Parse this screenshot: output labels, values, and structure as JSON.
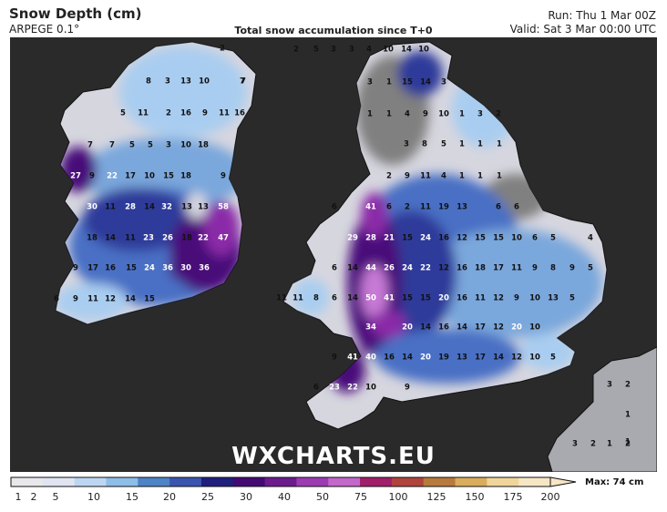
{
  "header": {
    "title": "Snow Depth (cm)",
    "model": "ARPEGE 0.1°",
    "subtitle": "Total snow accumulation since T+0",
    "run": "Run: Thu 1 Mar 00Z",
    "valid": "Valid: Sat 3 Mar 00:00 UTC"
  },
  "watermark": "WXCHARTS.EU",
  "legend": {
    "max_label": "Max: 74 cm",
    "levels": [
      "1",
      "2",
      "5",
      "10",
      "15",
      "20",
      "25",
      "30",
      "40",
      "50",
      "75",
      "100",
      "125",
      "150",
      "175",
      "200"
    ],
    "colors": [
      "#e8e8ec",
      "#e0e4f0",
      "#bcd6f2",
      "#8ebde8",
      "#4f83c7",
      "#3a55b0",
      "#1f1f7e",
      "#430a73",
      "#6b1c8e",
      "#9d3bb3",
      "#c467cb",
      "#a11e6a",
      "#b0443c",
      "#b87a3c",
      "#d9ad5c",
      "#f0d59a",
      "#f6e6c4"
    ]
  },
  "map": {
    "colors": {
      "sea": "#2a2a2a",
      "land_grey": "#808080",
      "land_light": "#d6d6df",
      "snow_1": "#e8e8f2",
      "snow_5": "#a9cdf0",
      "snow_10": "#7aa7dc",
      "snow_15": "#4a6fc4",
      "snow_20": "#2e3a9a",
      "snow_30": "#4a0f7a",
      "snow_40": "#8b2aa8",
      "snow_50": "#c77ad6"
    },
    "values": [
      {
        "v": "2"
      },
      {
        "v": "7"
      },
      {
        "v": "8"
      },
      {
        "v": "3"
      },
      {
        "v": "13"
      },
      {
        "v": "10"
      },
      {
        "v": "7"
      },
      {
        "v": "5"
      },
      {
        "v": "11"
      },
      {
        "v": "2"
      },
      {
        "v": "16"
      },
      {
        "v": "9"
      },
      {
        "v": "11"
      },
      {
        "v": "16"
      },
      {
        "v": "7"
      },
      {
        "v": "7"
      },
      {
        "v": "5"
      },
      {
        "v": "5"
      },
      {
        "v": "3"
      },
      {
        "v": "10"
      },
      {
        "v": "18"
      },
      {
        "v": "27"
      },
      {
        "v": "9"
      },
      {
        "v": "22"
      },
      {
        "v": "17"
      },
      {
        "v": "10"
      },
      {
        "v": "15"
      },
      {
        "v": "18"
      },
      {
        "v": "9"
      },
      {
        "v": "30"
      },
      {
        "v": "11"
      },
      {
        "v": "28"
      },
      {
        "v": "14"
      },
      {
        "v": "32"
      },
      {
        "v": "13"
      },
      {
        "v": "13"
      },
      {
        "v": "58"
      },
      {
        "v": "18"
      },
      {
        "v": "14"
      },
      {
        "v": "11"
      },
      {
        "v": "23"
      },
      {
        "v": "26"
      },
      {
        "v": "18"
      },
      {
        "v": "22"
      },
      {
        "v": "47"
      },
      {
        "v": "9"
      },
      {
        "v": "17"
      },
      {
        "v": "16"
      },
      {
        "v": "15"
      },
      {
        "v": "24"
      },
      {
        "v": "36"
      },
      {
        "v": "30"
      },
      {
        "v": "36"
      },
      {
        "v": "6"
      },
      {
        "v": "9"
      },
      {
        "v": "11"
      },
      {
        "v": "12"
      },
      {
        "v": "14"
      },
      {
        "v": "15"
      },
      {
        "v": "2"
      },
      {
        "v": "5"
      },
      {
        "v": "3"
      },
      {
        "v": "3"
      },
      {
        "v": "4"
      },
      {
        "v": "10"
      },
      {
        "v": "14"
      },
      {
        "v": "10"
      },
      {
        "v": "3"
      },
      {
        "v": "1"
      },
      {
        "v": "15"
      },
      {
        "v": "14"
      },
      {
        "v": "3"
      },
      {
        "v": "1"
      },
      {
        "v": "1"
      },
      {
        "v": "4"
      },
      {
        "v": "9"
      },
      {
        "v": "10"
      },
      {
        "v": "1"
      },
      {
        "v": "3"
      },
      {
        "v": "2"
      },
      {
        "v": "3"
      },
      {
        "v": "8"
      },
      {
        "v": "5"
      },
      {
        "v": "1"
      },
      {
        "v": "1"
      },
      {
        "v": "1"
      },
      {
        "v": "2"
      },
      {
        "v": "9"
      },
      {
        "v": "11"
      },
      {
        "v": "4"
      },
      {
        "v": "1"
      },
      {
        "v": "1"
      },
      {
        "v": "1"
      },
      {
        "v": "6"
      },
      {
        "v": "41"
      },
      {
        "v": "6"
      },
      {
        "v": "2"
      },
      {
        "v": "11"
      },
      {
        "v": "19"
      },
      {
        "v": "13"
      },
      {
        "v": "6"
      },
      {
        "v": "6"
      },
      {
        "v": "29"
      },
      {
        "v": "28"
      },
      {
        "v": "21"
      },
      {
        "v": "15"
      },
      {
        "v": "24"
      },
      {
        "v": "16"
      },
      {
        "v": "12"
      },
      {
        "v": "15"
      },
      {
        "v": "15"
      },
      {
        "v": "10"
      },
      {
        "v": "6"
      },
      {
        "v": "5"
      },
      {
        "v": "4"
      },
      {
        "v": "6"
      },
      {
        "v": "14"
      },
      {
        "v": "44"
      },
      {
        "v": "26"
      },
      {
        "v": "24"
      },
      {
        "v": "22"
      },
      {
        "v": "12"
      },
      {
        "v": "16"
      },
      {
        "v": "18"
      },
      {
        "v": "17"
      },
      {
        "v": "11"
      },
      {
        "v": "9"
      },
      {
        "v": "8"
      },
      {
        "v": "9"
      },
      {
        "v": "5"
      },
      {
        "v": "11"
      },
      {
        "v": "11"
      },
      {
        "v": "8"
      },
      {
        "v": "6"
      },
      {
        "v": "14"
      },
      {
        "v": "50"
      },
      {
        "v": "41"
      },
      {
        "v": "15"
      },
      {
        "v": "15"
      },
      {
        "v": "20"
      },
      {
        "v": "16"
      },
      {
        "v": "11"
      },
      {
        "v": "12"
      },
      {
        "v": "9"
      },
      {
        "v": "10"
      },
      {
        "v": "13"
      },
      {
        "v": "5"
      },
      {
        "v": "34"
      },
      {
        "v": "20"
      },
      {
        "v": "14"
      },
      {
        "v": "16"
      },
      {
        "v": "14"
      },
      {
        "v": "17"
      },
      {
        "v": "12"
      },
      {
        "v": "20"
      },
      {
        "v": "10"
      },
      {
        "v": "9"
      },
      {
        "v": "41"
      },
      {
        "v": "40"
      },
      {
        "v": "16"
      },
      {
        "v": "14"
      },
      {
        "v": "20"
      },
      {
        "v": "19"
      },
      {
        "v": "13"
      },
      {
        "v": "17"
      },
      {
        "v": "14"
      },
      {
        "v": "12"
      },
      {
        "v": "10"
      },
      {
        "v": "5"
      },
      {
        "v": "6"
      },
      {
        "v": "23"
      },
      {
        "v": "22"
      },
      {
        "v": "10"
      },
      {
        "v": "9"
      },
      {
        "v": "3"
      },
      {
        "v": "2"
      },
      {
        "v": "1"
      },
      {
        "v": "1"
      },
      {
        "v": "3"
      },
      {
        "v": "2"
      },
      {
        "v": "1"
      },
      {
        "v": "2"
      }
    ]
  }
}
